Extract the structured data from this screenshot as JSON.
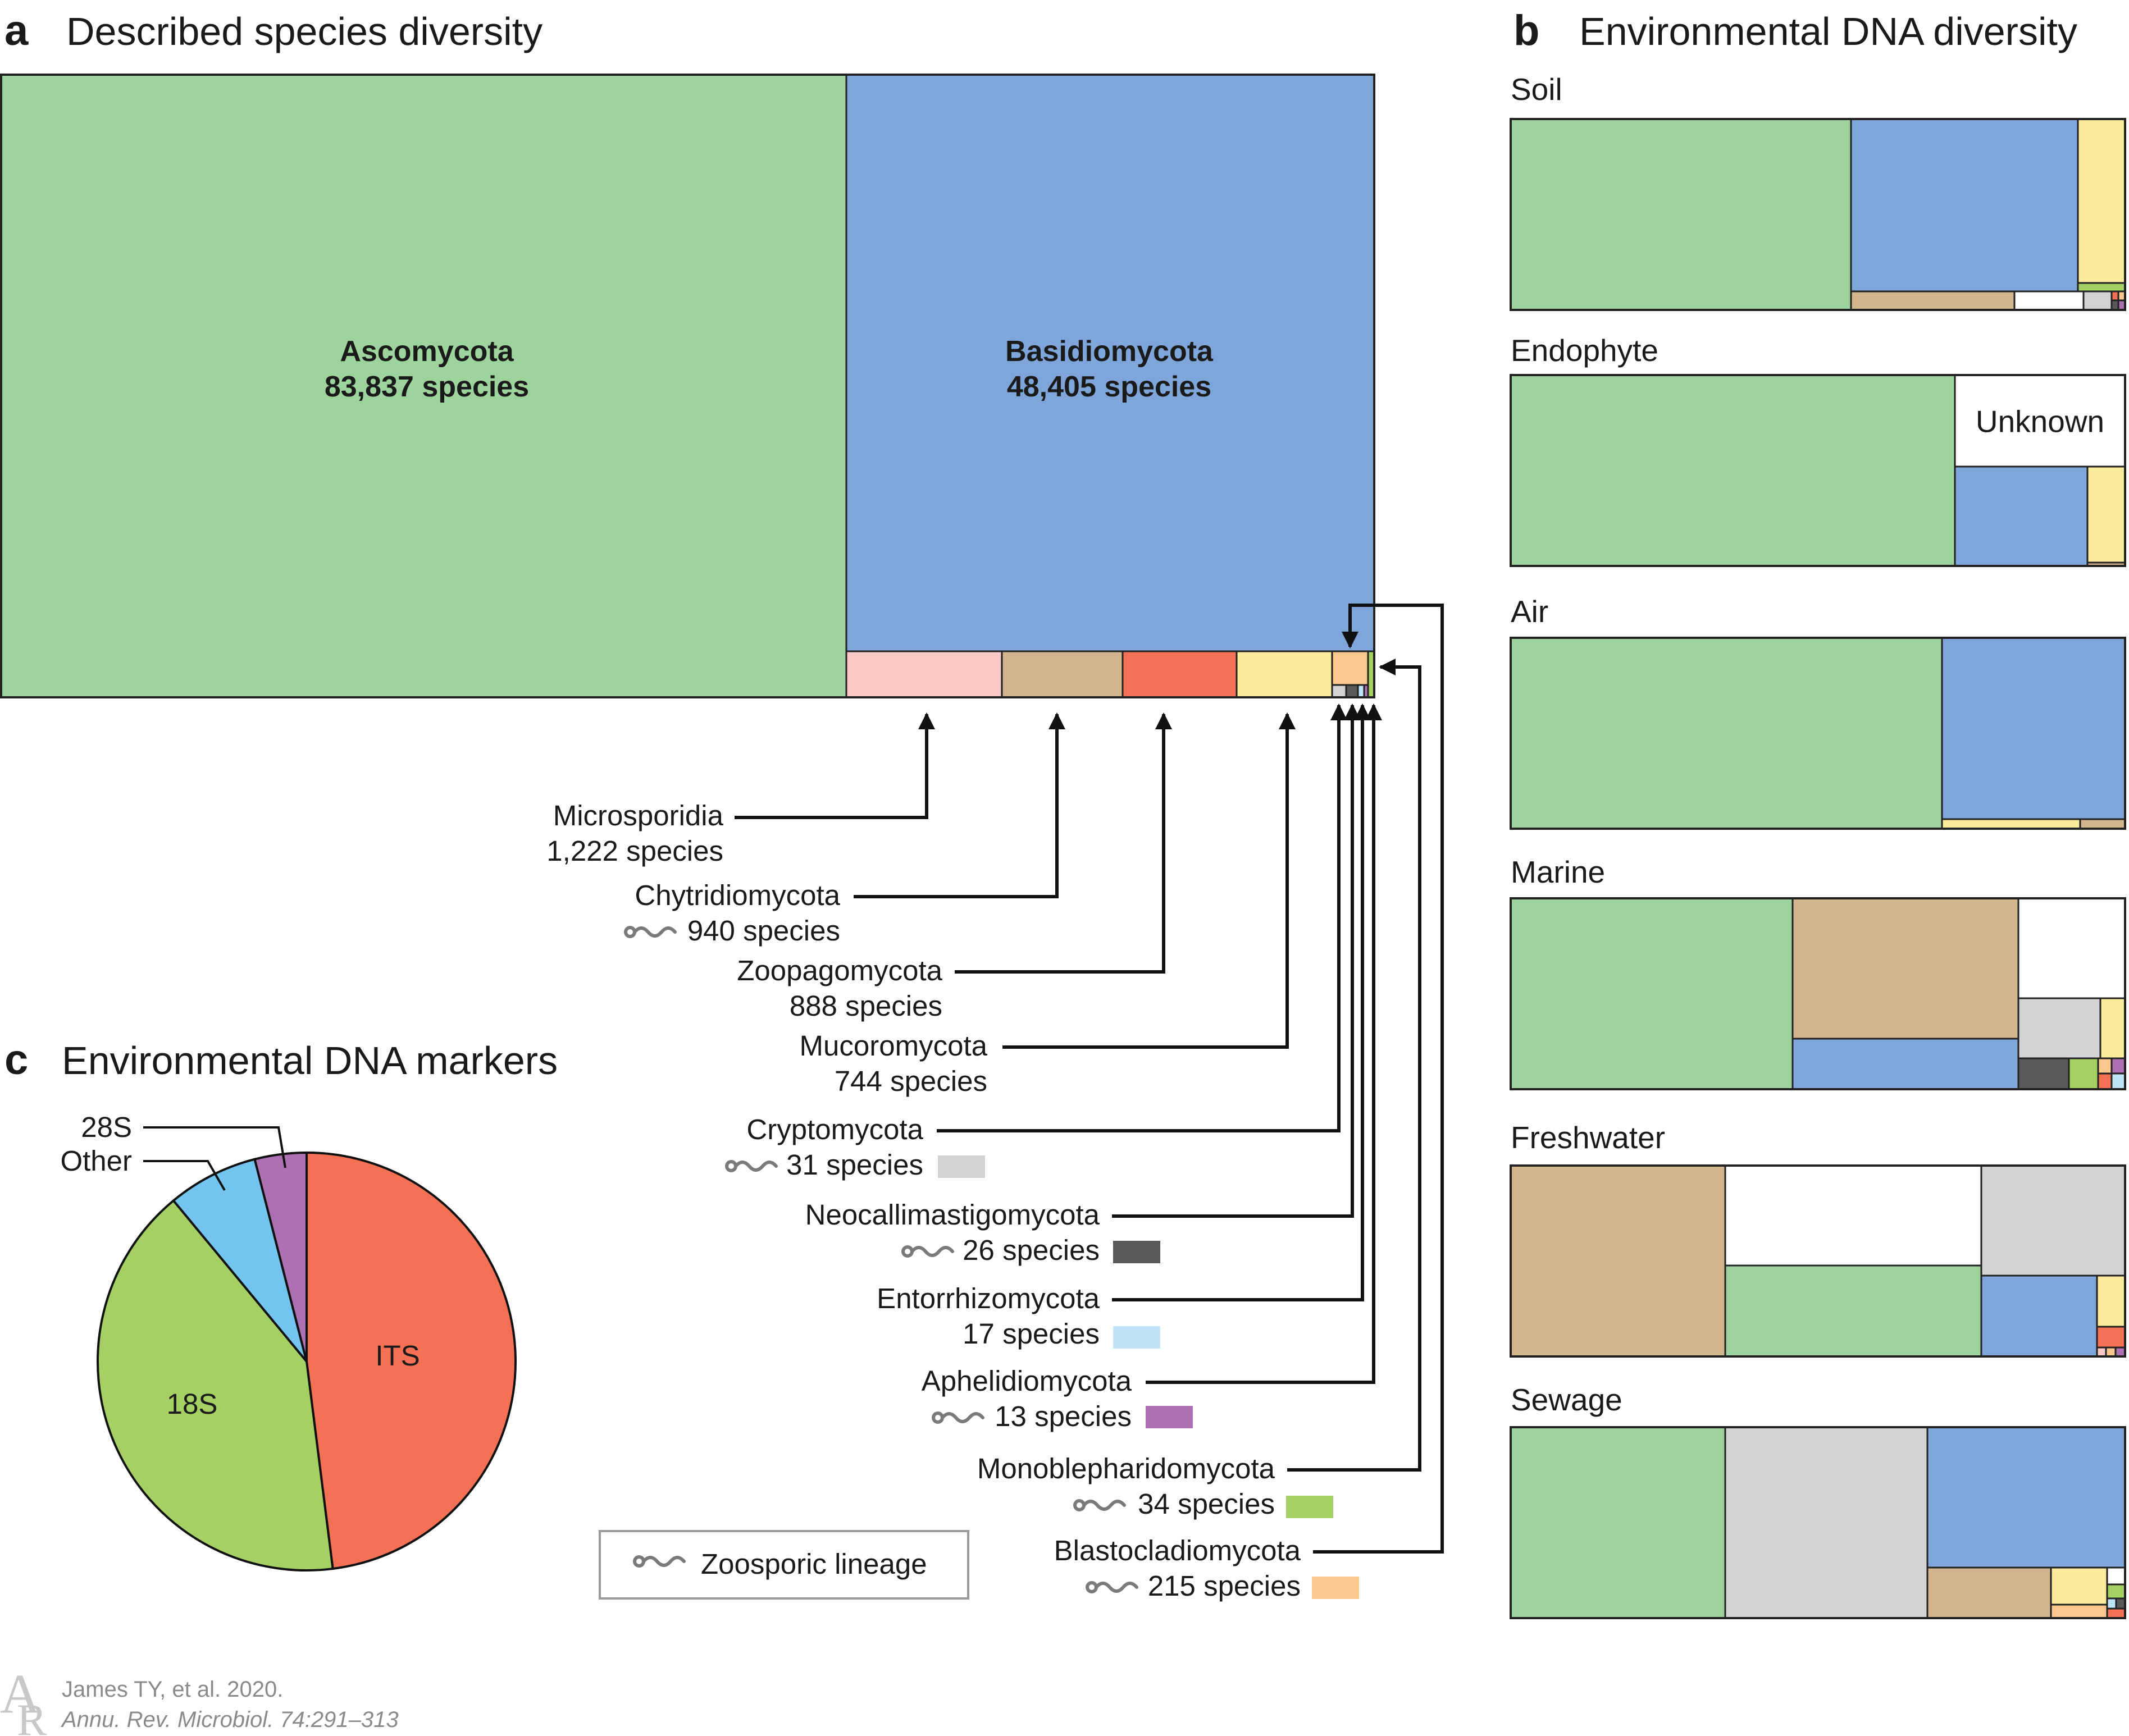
{
  "colors": {
    "Ascomycota": "#9dd39c",
    "Basidiomycota": "#7ea6da",
    "Microsporidia": "#f9c8c7",
    "Chytridiomycota": "#d3b58e",
    "Zoopagomycota": "#f47155",
    "Mucoromycota": "#fbec9b",
    "Cryptomycota": "#d2d3d5",
    "Neocallimastigomycota": "#58595b",
    "Entorrhizomycota": "#bfe4f8",
    "Aphelidiomycota": "#ad70b3",
    "Monoblepharidomycota": "#a5d064",
    "Blastocladiomycota": "#fbc78d",
    "Unknown": "#ffffff",
    "ITS": "#f47155",
    "18S": "#a5d064",
    "Other": "#74c4f0",
    "28S": "#ad70b3"
  },
  "panel_a": {
    "letter": "a",
    "title": "Described species diversity",
    "main": [
      {
        "name": "Ascomycota",
        "label": "83,837 species"
      },
      {
        "name": "Basidiomycota",
        "label": "48,405 species"
      }
    ],
    "minor": [
      {
        "name": "Microsporidia",
        "label": "1,222 species",
        "zoosporic": false
      },
      {
        "name": "Chytridiomycota",
        "label": "940 species",
        "zoosporic": true
      },
      {
        "name": "Zoopagomycota",
        "label": "888 species",
        "zoosporic": false
      },
      {
        "name": "Mucoromycota",
        "label": "744 species",
        "zoosporic": false
      },
      {
        "name": "Cryptomycota",
        "label": "31 species",
        "zoosporic": true
      },
      {
        "name": "Neocallimastigomycota",
        "label": "26 species",
        "zoosporic": true
      },
      {
        "name": "Entorrhizomycota",
        "label": "17 species",
        "zoosporic": false
      },
      {
        "name": "Aphelidiomycota",
        "label": "13 species",
        "zoosporic": true
      },
      {
        "name": "Monoblepharidomycota",
        "label": "34 species",
        "zoosporic": true
      },
      {
        "name": "Blastocladiomycota",
        "label": "215 species",
        "zoosporic": true
      }
    ],
    "legend_label": "Zoosporic lineage"
  },
  "panel_b": {
    "letter": "b",
    "title": "Environmental DNA diversity",
    "environments": [
      {
        "name": "Soil"
      },
      {
        "name": "Endophyte",
        "unknown_label": "Unknown"
      },
      {
        "name": "Air"
      },
      {
        "name": "Marine"
      },
      {
        "name": "Freshwater"
      },
      {
        "name": "Sewage"
      }
    ]
  },
  "panel_c": {
    "letter": "c",
    "title": "Environmental DNA markers"
  },
  "chart_data": [
    {
      "type": "treemap",
      "title": "Described species diversity",
      "categories": [
        "Ascomycota",
        "Basidiomycota",
        "Microsporidia",
        "Chytridiomycota",
        "Zoopagomycota",
        "Mucoromycota",
        "Blastocladiomycota",
        "Monoblepharidomycota",
        "Cryptomycota",
        "Neocallimastigomycota",
        "Entorrhizomycota",
        "Aphelidiomycota"
      ],
      "values": [
        83837,
        48405,
        1222,
        940,
        888,
        744,
        215,
        34,
        31,
        26,
        17,
        13
      ]
    },
    {
      "type": "pie",
      "title": "Environmental DNA markers",
      "categories": [
        "ITS",
        "18S",
        "Other",
        "28S"
      ],
      "values": [
        48,
        41,
        7,
        4
      ]
    }
  ],
  "credit": {
    "line1": "James TY, et al. 2020.",
    "line2": "Annu. Rev. Microbiol. 74:291–313"
  }
}
